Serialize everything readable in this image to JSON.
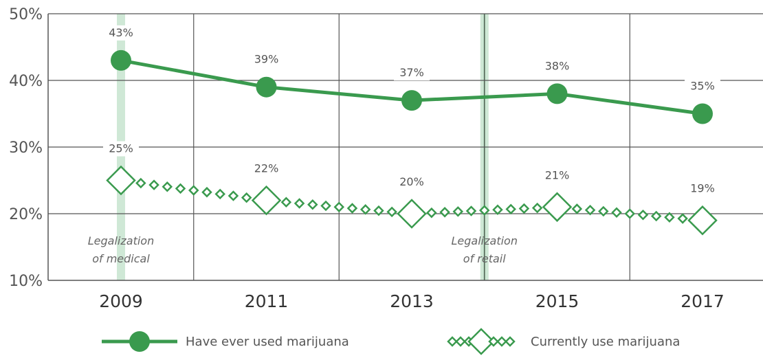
{
  "chart_data": {
    "type": "line",
    "x": [
      2009,
      2011,
      2013,
      2015,
      2017
    ],
    "x_tick_labels": [
      "2009",
      "2011",
      "2013",
      "2015",
      "2017"
    ],
    "y_tick_labels": [
      "10%",
      "20%",
      "30%",
      "40%",
      "50%"
    ],
    "ylim": [
      10,
      50
    ],
    "xlim": [
      2008,
      2019
    ],
    "y_unit": "%",
    "grid": true,
    "legend_position": "bottom",
    "colors": {
      "series": "#3a9a4e",
      "band": "#cfe8d6",
      "grid": "#555555"
    },
    "series": [
      {
        "name": "Have ever used marijuana",
        "marker": "filled-circle",
        "values": [
          43,
          39,
          37,
          38,
          35
        ],
        "labels": [
          "43%",
          "39%",
          "37%",
          "38%",
          "35%"
        ]
      },
      {
        "name": "Currently use marijuana",
        "marker": "open-diamond",
        "values": [
          25,
          22,
          20,
          21,
          19
        ],
        "labels": [
          "25%",
          "22%",
          "20%",
          "21%",
          "19%"
        ]
      }
    ],
    "annotations": [
      {
        "x": 2009,
        "lines": [
          "Legalization",
          "of medical"
        ]
      },
      {
        "x": 2014,
        "lines": [
          "Legalization",
          "of retail"
        ]
      }
    ]
  }
}
